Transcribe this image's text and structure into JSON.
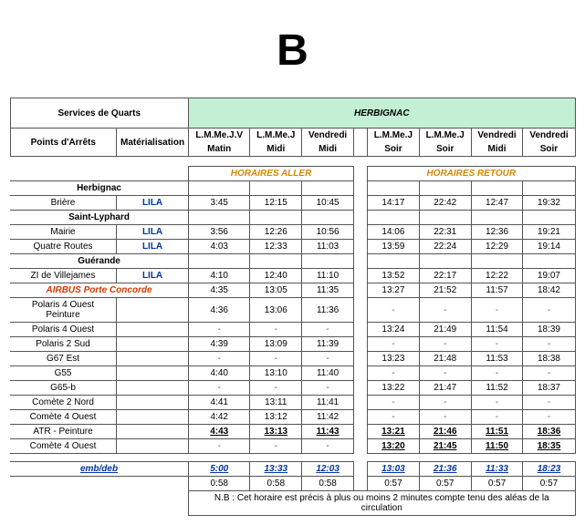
{
  "title_letter": "B",
  "header": {
    "services": "Services de Quarts",
    "destination": "HERBIGNAC",
    "points": "Points d'Arrêts",
    "materialisation": "Matérialisation",
    "days": [
      {
        "top": "L.M.Me.J.V",
        "bot": "Matin"
      },
      {
        "top": "L.M.Me.J",
        "bot": "Midi"
      },
      {
        "top": "Vendredi",
        "bot": "Midi"
      },
      {
        "top": "L.M.Me.J",
        "bot": "Soir"
      },
      {
        "top": "L.M.Me.J",
        "bot": "Soir"
      },
      {
        "top": "Vendredi",
        "bot": "Midi"
      },
      {
        "top": "Vendredi",
        "bot": "Soir"
      }
    ],
    "section_aller": "HORAIRES ALLER",
    "section_retour": "HORAIRES RETOUR"
  },
  "groups": [
    {
      "label": "Herbignac",
      "rows": [
        {
          "stop": "Brière",
          "mat": "LILA",
          "a": [
            "3:45",
            "12:15",
            "10:45"
          ],
          "r": [
            "14:17",
            "22:42",
            "12:47",
            "19:32"
          ]
        }
      ]
    },
    {
      "label": "Saint-Lyphard",
      "rows": [
        {
          "stop": "Mairie",
          "mat": "LILA",
          "a": [
            "3:56",
            "12:26",
            "10:56"
          ],
          "r": [
            "14:06",
            "22:31",
            "12:36",
            "19:21"
          ]
        },
        {
          "stop": "Quatre Routes",
          "mat": "LILA",
          "a": [
            "4:03",
            "12:33",
            "11:03"
          ],
          "r": [
            "13:59",
            "22:24",
            "12:29",
            "19:14"
          ]
        }
      ]
    },
    {
      "label": "Guérande",
      "rows": [
        {
          "stop": "ZI de Villejames",
          "mat": "LILA",
          "a": [
            "4:10",
            "12:40",
            "11:10"
          ],
          "r": [
            "13:52",
            "22:17",
            "12:22",
            "19:07"
          ]
        }
      ]
    }
  ],
  "airbus": {
    "label": "AIRBUS Porte Concorde",
    "head": {
      "a": [
        "4:35",
        "13:05",
        "11:35"
      ],
      "r": [
        "13:27",
        "21:52",
        "11:57",
        "18:42"
      ]
    },
    "rows": [
      {
        "stop": "Polaris 4 Ouest Peinture",
        "a": [
          "4:36",
          "13:06",
          "11:36"
        ],
        "r": [
          "-",
          "-",
          "-",
          "-"
        ]
      },
      {
        "stop": "Polaris 4 Ouest",
        "a": [
          "-",
          "-",
          "-"
        ],
        "r": [
          "13:24",
          "21:49",
          "11:54",
          "18:39"
        ]
      },
      {
        "stop": "Polaris 2 Sud",
        "a": [
          "4:39",
          "13:09",
          "11:39"
        ],
        "r": [
          "-",
          "-",
          "-",
          "-"
        ]
      },
      {
        "stop": "G67 Est",
        "a": [
          "-",
          "-",
          "-"
        ],
        "r": [
          "13:23",
          "21:48",
          "11:53",
          "18:38"
        ]
      },
      {
        "stop": "G55",
        "a": [
          "4:40",
          "13:10",
          "11:40"
        ],
        "r": [
          "-",
          "-",
          "-",
          "-"
        ]
      },
      {
        "stop": "G65-b",
        "a": [
          "-",
          "-",
          "-"
        ],
        "r": [
          "13:22",
          "21:47",
          "11:52",
          "18:37"
        ]
      },
      {
        "stop": "Comète 2 Nord",
        "a": [
          "4:41",
          "13:11",
          "11:41"
        ],
        "r": [
          "-",
          "-",
          "-",
          "-"
        ]
      },
      {
        "stop": "Comète 4 Ouest",
        "a": [
          "4:42",
          "13:12",
          "11:42"
        ],
        "r": [
          "-",
          "-",
          "-",
          "-"
        ]
      },
      {
        "stop": "ATR - Peinture",
        "a": [
          "4:43",
          "13:13",
          "11:43"
        ],
        "r": [
          "13:21",
          "21:46",
          "11:51",
          "18:36"
        ],
        "bold": true
      },
      {
        "stop": "Comète 4 Ouest",
        "a": [
          "-",
          "-",
          "-"
        ],
        "r": [
          "13:20",
          "21:45",
          "11:50",
          "18:35"
        ],
        "boldr": true
      }
    ]
  },
  "embdeb": {
    "label": "emb/deb",
    "a": [
      "5:00",
      "13:33",
      "12:03"
    ],
    "r": [
      "13:03",
      "21:36",
      "11:33",
      "18:23"
    ]
  },
  "durations": {
    "a": [
      "0:58",
      "0:58",
      "0:58"
    ],
    "r": [
      "0:57",
      "0:57",
      "0:57",
      "0:57"
    ]
  },
  "footnote": "N.B : Cet horaire est précis à plus ou moins 2 minutes compte tenu des aléas de la circulation"
}
